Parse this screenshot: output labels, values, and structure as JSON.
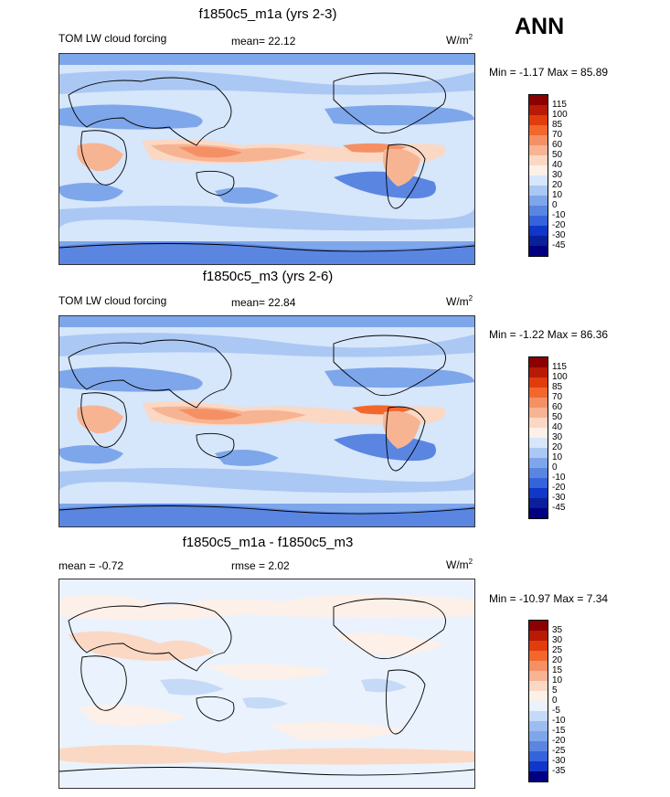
{
  "season": "ANN",
  "panels": [
    {
      "title": "f1850c5_m1a (yrs 2-3)",
      "left_label": "TOM LW cloud forcing",
      "center_label": "mean=  22.12",
      "units": "W/m",
      "units_sup": "2",
      "minmax": "Min =  -1.17 Max =  85.89",
      "levels": [
        "115",
        "100",
        "85",
        "70",
        "60",
        "50",
        "40",
        "30",
        "20",
        "10",
        "0",
        "-10",
        "-20",
        "-30",
        "-45"
      ],
      "colors": [
        "#8b0000",
        "#b81a05",
        "#e03c0c",
        "#f4672c",
        "#f59065",
        "#f7b493",
        "#fbd8c4",
        "#fdf0e8",
        "#d6e6fb",
        "#aac8f3",
        "#7ea6ea",
        "#5a86e2",
        "#3463db",
        "#1037c8",
        "#0a1f9a",
        "#000080"
      ]
    },
    {
      "title": "f1850c5_m3 (yrs 2-6)",
      "left_label": "TOM LW cloud forcing",
      "center_label": "mean=  22.84",
      "units": "W/m",
      "units_sup": "2",
      "minmax": "Min =  -1.22 Max =  86.36",
      "levels": [
        "115",
        "100",
        "85",
        "70",
        "60",
        "50",
        "40",
        "30",
        "20",
        "10",
        "0",
        "-10",
        "-20",
        "-30",
        "-45"
      ],
      "colors": [
        "#8b0000",
        "#b81a05",
        "#e03c0c",
        "#f4672c",
        "#f59065",
        "#f7b493",
        "#fbd8c4",
        "#fdf0e8",
        "#d6e6fb",
        "#aac8f3",
        "#7ea6ea",
        "#5a86e2",
        "#3463db",
        "#1037c8",
        "#0a1f9a",
        "#000080"
      ]
    },
    {
      "title": "f1850c5_m1a - f1850c5_m3",
      "left_label": "mean =  -0.72",
      "center_label": "rmse =   2.02",
      "units": "W/m",
      "units_sup": "2",
      "minmax": "Min = -10.97 Max =   7.34",
      "levels": [
        "35",
        "30",
        "25",
        "20",
        "15",
        "10",
        "5",
        "0",
        "-5",
        "-10",
        "-15",
        "-20",
        "-25",
        "-30",
        "-35"
      ],
      "colors": [
        "#8b0000",
        "#b81a05",
        "#e03c0c",
        "#f4672c",
        "#f59065",
        "#f7b493",
        "#fbd8c4",
        "#fdf0e8",
        "#eaf2fd",
        "#c4daf7",
        "#9dbdf0",
        "#7ea6ea",
        "#5a86e2",
        "#3463db",
        "#1037c8",
        "#000080"
      ]
    }
  ]
}
